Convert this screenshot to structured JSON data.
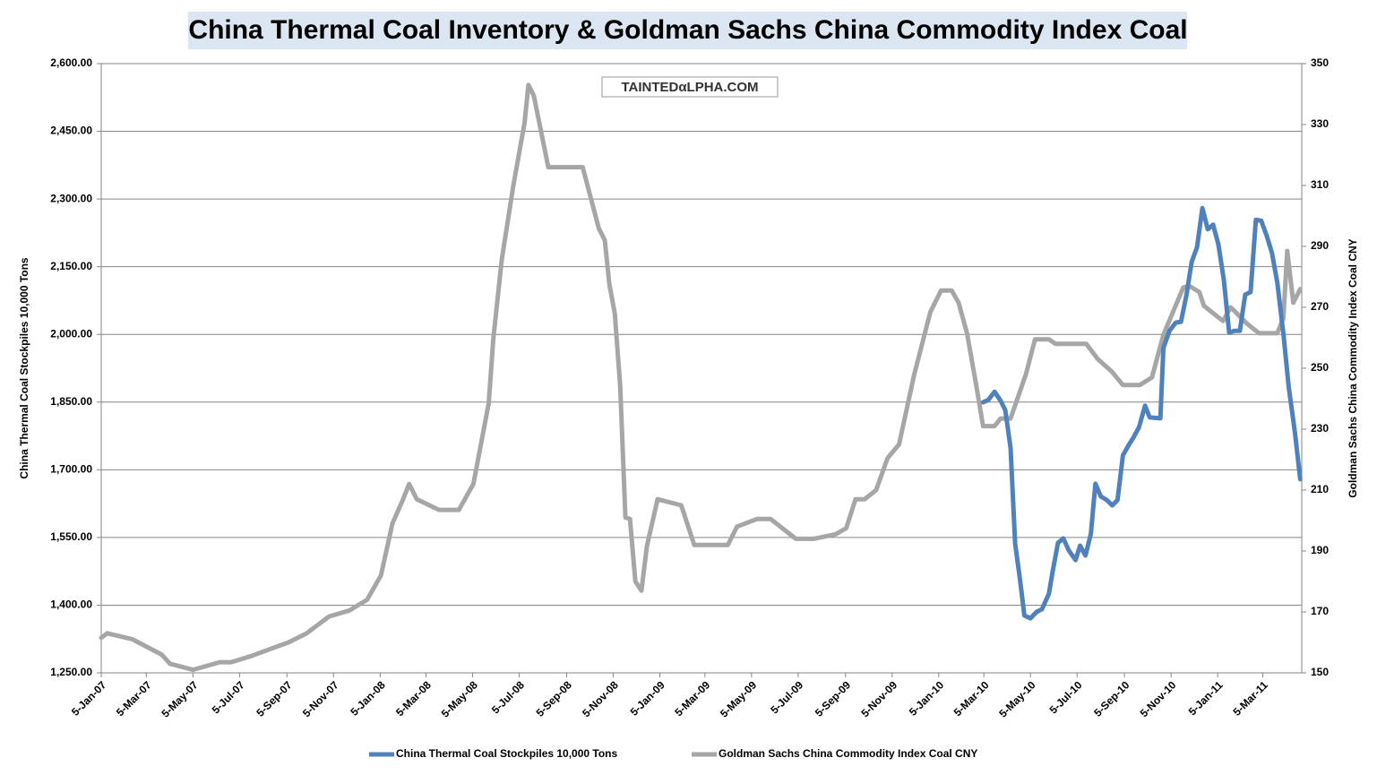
{
  "chart_data": {
    "type": "line",
    "title": "China Thermal Coal Inventory & Goldman Sachs China Commodity Index Coal",
    "watermark": "TAINTEDαLPHA.COM",
    "ylabel": "China Thermal Coal Stockpiles 10,000 Tons",
    "y2label": "Goldman Sachs China Commodity Index Coal CNY",
    "xlim": [
      "5-Jan-07",
      "25-Apr-11"
    ],
    "xticks": [
      "5-Jan-07",
      "5-Mar-07",
      "5-May-07",
      "5-Jul-07",
      "5-Sep-07",
      "5-Nov-07",
      "5-Jan-08",
      "5-Mar-08",
      "5-May-08",
      "5-Jul-08",
      "5-Sep-08",
      "5-Nov-08",
      "5-Jan-09",
      "5-Mar-09",
      "5-May-09",
      "5-Jul-09",
      "5-Sep-09",
      "5-Nov-09",
      "5-Jan-10",
      "5-Mar-10",
      "5-May-10",
      "5-Jul-10",
      "5-Sep-10",
      "5-Nov-10",
      "5-Jan-11",
      "5-Mar-11"
    ],
    "ylim": [
      1250,
      2600
    ],
    "yticks": [
      {
        "value": 1250,
        "label": "1,250.00"
      },
      {
        "value": 1400,
        "label": "1,400.00"
      },
      {
        "value": 1550,
        "label": "1,550.00"
      },
      {
        "value": 1700,
        "label": "1,700.00"
      },
      {
        "value": 1850,
        "label": "1,850.00"
      },
      {
        "value": 2000,
        "label": "2,000.00"
      },
      {
        "value": 2150,
        "label": "2,150.00"
      },
      {
        "value": 2300,
        "label": "2,300.00"
      },
      {
        "value": 2450,
        "label": "2,450.00"
      },
      {
        "value": 2600,
        "label": "2,600.00"
      }
    ],
    "y2lim": [
      150,
      350
    ],
    "y2ticks": [
      150,
      170,
      190,
      210,
      230,
      250,
      270,
      290,
      310,
      330,
      350
    ],
    "grid": true,
    "legend": "bottom",
    "series": [
      {
        "name": "China Thermal Coal Stockpiles 10,000 Tons",
        "color": "#4f81bd",
        "axis": "y",
        "x": [
          "4-Mar-10",
          "11-Mar-10",
          "19-Mar-10",
          "27-Mar-10",
          "2-Apr-10",
          "9-Apr-10",
          "15-Apr-10",
          "21-Apr-10",
          "27-Apr-10",
          "5-May-10",
          "13-May-10",
          "20-May-10",
          "29-May-10",
          "3-Jun-10",
          "10-Jun-10",
          "17-Jun-10",
          "24-Jun-10",
          "3-Jul-10",
          "9-Jul-10",
          "16-Jul-10",
          "23-Jul-10",
          "29-Jul-10",
          "5-Aug-10",
          "13-Aug-10",
          "20-Aug-10",
          "27-Aug-10",
          "3-Sep-10",
          "11-Sep-10",
          "17-Sep-10",
          "24-Sep-10",
          "2-Oct-10",
          "8-Oct-10",
          "22-Oct-10",
          "26-Oct-10",
          "3-Nov-10",
          "11-Nov-10",
          "18-Nov-10",
          "25-Nov-10",
          "2-Dec-10",
          "9-Dec-10",
          "16-Dec-10",
          "23-Dec-10",
          "30-Dec-10",
          "6-Jan-11",
          "13-Jan-11",
          "20-Jan-11",
          "27-Jan-11",
          "3-Feb-11",
          "10-Feb-11",
          "17-Feb-11",
          "24-Feb-11",
          "3-Mar-11",
          "10-Mar-11",
          "17-Mar-11",
          "24-Mar-11",
          "1-Apr-11",
          "8-Apr-11",
          "16-Apr-11",
          "23-Apr-11"
        ],
        "values": [
          1849.5,
          1855,
          1873,
          1853,
          1832,
          1748,
          1536,
          1460,
          1377,
          1371,
          1385,
          1391,
          1425,
          1474,
          1538,
          1548,
          1522,
          1500,
          1532,
          1510,
          1558,
          1669,
          1641,
          1633,
          1621,
          1633,
          1732,
          1756,
          1772,
          1794,
          1842,
          1816,
          1814,
          1970,
          2008,
          2026,
          2028,
          2086,
          2161,
          2193,
          2280,
          2233,
          2243,
          2199,
          2121,
          2004,
          2008,
          2008,
          2088,
          2094,
          2254,
          2252,
          2219,
          2181,
          2115,
          2002,
          1883,
          1784,
          1679
        ]
      },
      {
        "name": "Goldman Sachs China Commodity Index Coal CNY",
        "color": "#a6a6a6",
        "axis": "y2",
        "x": [
          "5-Jan-07",
          "13-Jan-07",
          "15-Feb-07",
          "25-Mar-07",
          "5-Apr-07",
          "5-May-07",
          "9-Jun-07",
          "24-Jun-07",
          "20-Jul-07",
          "16-Aug-07",
          "7-Sep-07",
          "1-Oct-07",
          "30-Oct-07",
          "26-Nov-07",
          "19-Dec-07",
          "6-Jan-08",
          "21-Jan-08",
          "4-Feb-08",
          "12-Feb-08",
          "22-Feb-08",
          "22-Mar-08",
          "17-Apr-08",
          "6-May-08",
          "26-May-08",
          "1-Jun-08",
          "12-Jun-08",
          "27-Jun-08",
          "12-Jul-08",
          "17-Jul-08",
          "24-Jul-08",
          "12-Aug-08",
          "26-Sep-08",
          "17-Oct-08",
          "25-Oct-08",
          "31-Oct-08",
          "7-Nov-08",
          "14-Nov-08",
          "21-Nov-08",
          "27-Nov-08",
          "4-Dec-08",
          "12-Dec-08",
          "19-Dec-08",
          "2-Jan-09",
          "2-Feb-09",
          "19-Feb-09",
          "4-Apr-09",
          "16-Apr-09",
          "12-May-09",
          "30-May-09",
          "2-Jul-09",
          "25-Jul-09",
          "23-Aug-09",
          "6-Sep-09",
          "18-Sep-09",
          "30-Sep-09",
          "15-Oct-09",
          "30-Oct-09",
          "14-Nov-09",
          "4-Dec-09",
          "25-Dec-09",
          "8-Jan-10",
          "22-Jan-10",
          "31-Jan-10",
          "11-Feb-10",
          "24-Feb-10",
          "4-Mar-10",
          "19-Mar-10",
          "27-Mar-10",
          "9-Apr-10",
          "29-Apr-10",
          "11-May-10",
          "29-May-10",
          "7-Jun-10",
          "17-Jul-10",
          "1-Aug-10",
          "19-Aug-10",
          "3-Sep-10",
          "25-Sep-10",
          "11-Oct-10",
          "26-Oct-10",
          "21-Nov-10",
          "29-Nov-10",
          "12-Dec-10",
          "18-Dec-10",
          "12-Jan-11",
          "22-Jan-11",
          "13-Feb-11",
          "28-Feb-11",
          "24-Mar-11",
          "1-Apr-11",
          "6-Apr-11",
          "14-Apr-11",
          "23-Apr-11"
        ],
        "values": [
          161.5,
          163,
          161,
          156,
          153,
          151,
          153.5,
          153.5,
          155.5,
          158,
          160,
          163,
          168.5,
          170.5,
          174,
          182,
          199,
          207,
          212,
          207,
          203.5,
          203.5,
          212,
          238.5,
          259.5,
          285.5,
          309.5,
          330.5,
          343,
          339.5,
          316,
          316,
          296,
          292,
          277.5,
          268,
          244.5,
          201,
          200.5,
          180,
          177,
          191.5,
          207,
          205,
          192,
          192,
          198,
          200.5,
          200.5,
          194,
          194,
          195.5,
          197.5,
          207,
          207,
          210,
          220.5,
          225,
          248,
          268.5,
          275.5,
          275.5,
          271.5,
          261.5,
          243,
          231,
          231,
          233.5,
          233.5,
          248,
          259.5,
          259.5,
          258,
          258,
          253,
          249,
          244.5,
          244.5,
          247,
          261,
          276.5,
          277,
          275,
          270.5,
          265.5,
          270,
          264.5,
          261.5,
          261.5,
          266.5,
          288.5,
          271.5,
          276
        ]
      }
    ]
  }
}
